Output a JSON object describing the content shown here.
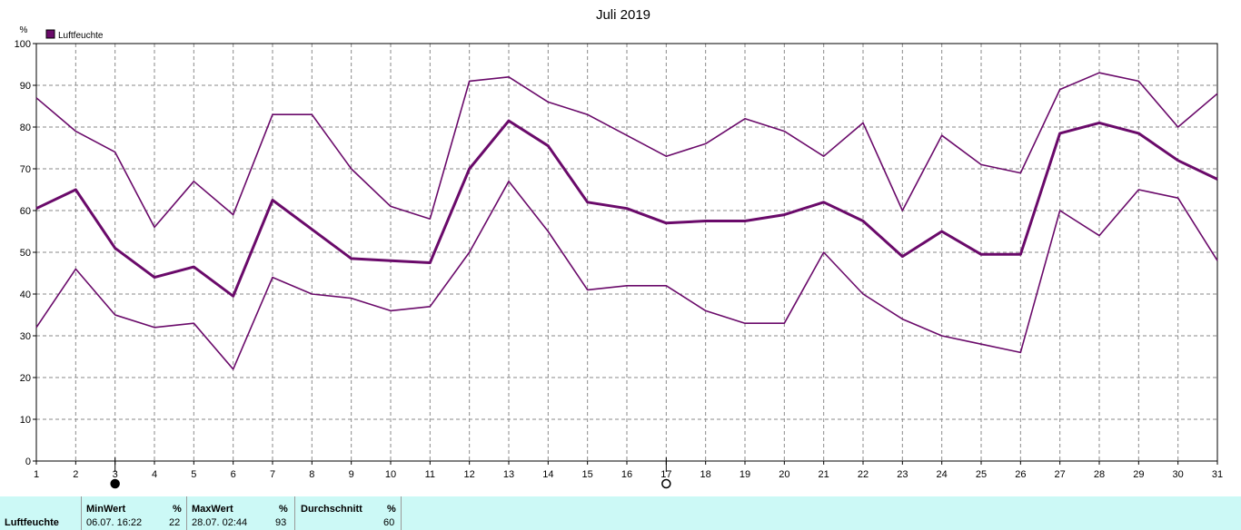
{
  "chart_data": {
    "type": "line",
    "title": "Juli 2019",
    "ylabel": "%",
    "ylim": [
      0,
      100
    ],
    "yticks": [
      0,
      10,
      20,
      30,
      40,
      50,
      60,
      70,
      80,
      90,
      100
    ],
    "x": [
      1,
      2,
      3,
      4,
      5,
      6,
      7,
      8,
      9,
      10,
      11,
      12,
      13,
      14,
      15,
      16,
      17,
      18,
      19,
      20,
      21,
      22,
      23,
      24,
      25,
      26,
      27,
      28,
      29,
      30,
      31
    ],
    "legend": {
      "label": "Luftfeuchte",
      "color": "#6a0a6a",
      "placement": "top-left"
    },
    "grid": true,
    "series": [
      {
        "role": "max",
        "values": [
          87,
          79,
          74,
          56,
          67,
          59,
          83,
          83,
          70,
          61,
          58,
          91,
          92,
          86,
          83,
          78,
          73,
          76,
          82,
          79,
          73,
          81,
          60,
          78,
          71,
          69,
          89,
          93,
          91,
          80,
          88
        ]
      },
      {
        "role": "mean",
        "values": [
          60.5,
          65,
          51,
          44,
          46.5,
          39.5,
          62.5,
          55.5,
          48.5,
          48,
          47.5,
          70,
          81.5,
          75.5,
          62,
          60.5,
          57,
          57.5,
          57.5,
          59,
          62,
          57.5,
          49,
          55,
          49.5,
          49.5,
          78.5,
          81,
          78.5,
          72,
          67.5
        ]
      },
      {
        "role": "min",
        "values": [
          32,
          46,
          35,
          32,
          33,
          22,
          44,
          40,
          39,
          36,
          37,
          50,
          67,
          55,
          41,
          42,
          42,
          36,
          33,
          33,
          50,
          40,
          34,
          30,
          28,
          26,
          60,
          54,
          65,
          63,
          48
        ]
      }
    ],
    "moon_markers": [
      {
        "day": 3,
        "phase": "new-moon"
      },
      {
        "day": 17,
        "phase": "full-moon"
      }
    ]
  },
  "footer": {
    "name": "Luftfeuchte",
    "min": {
      "header": "MinWert",
      "unit": "%",
      "time": "06.07.  16:22",
      "value": "22"
    },
    "max": {
      "header": "MaxWert",
      "unit": "%",
      "time": "28.07.  02:44",
      "value": "93"
    },
    "avg": {
      "header": "Durchschnitt",
      "unit": "%",
      "value": "60"
    }
  }
}
